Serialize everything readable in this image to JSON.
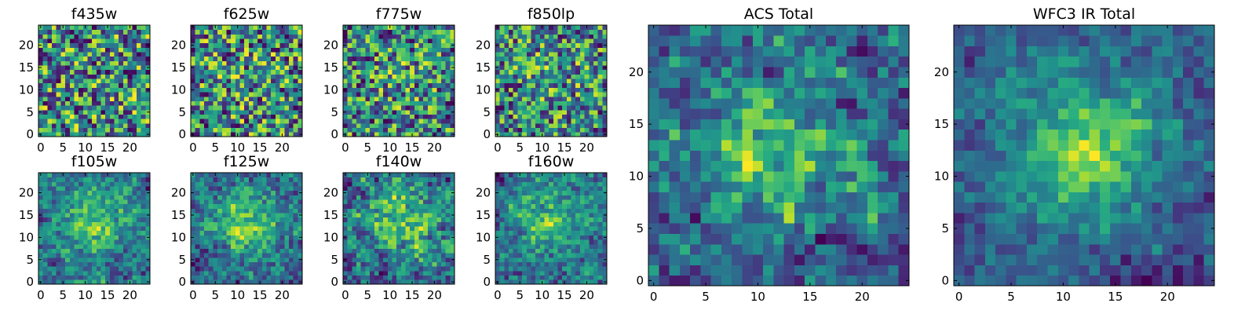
{
  "chart_data": [
    {
      "type": "heatmap",
      "title": "f435w",
      "grid_size": 25,
      "xlim": [
        -0.5,
        24.5
      ],
      "ylim": [
        -0.5,
        24.5
      ],
      "xticks": [
        "0",
        "5",
        "10",
        "15",
        "20"
      ],
      "yticks": [
        "0",
        "5",
        "10",
        "15",
        "20"
      ],
      "colormap": "viridis",
      "smoothness": 0.0,
      "center_strength": 0.0,
      "seed": 11
    },
    {
      "type": "heatmap",
      "title": "f625w",
      "grid_size": 25,
      "xlim": [
        -0.5,
        24.5
      ],
      "ylim": [
        -0.5,
        24.5
      ],
      "xticks": [
        "0",
        "5",
        "10",
        "15",
        "20"
      ],
      "yticks": [
        "0",
        "5",
        "10",
        "15",
        "20"
      ],
      "colormap": "viridis",
      "smoothness": 0.0,
      "center_strength": 0.05,
      "seed": 23
    },
    {
      "type": "heatmap",
      "title": "f775w",
      "grid_size": 25,
      "xlim": [
        -0.5,
        24.5
      ],
      "ylim": [
        -0.5,
        24.5
      ],
      "xticks": [
        "0",
        "5",
        "10",
        "15",
        "20"
      ],
      "yticks": [
        "0",
        "5",
        "10",
        "15",
        "20"
      ],
      "colormap": "viridis",
      "smoothness": 0.1,
      "center_strength": 0.1,
      "seed": 37
    },
    {
      "type": "heatmap",
      "title": "f850lp",
      "grid_size": 25,
      "xlim": [
        -0.5,
        24.5
      ],
      "ylim": [
        -0.5,
        24.5
      ],
      "xticks": [
        "0",
        "5",
        "10",
        "15",
        "20"
      ],
      "yticks": [
        "0",
        "5",
        "10",
        "15",
        "20"
      ],
      "colormap": "viridis",
      "smoothness": 0.1,
      "center_strength": 0.1,
      "seed": 41
    },
    {
      "type": "heatmap",
      "title": "f105w",
      "grid_size": 25,
      "xlim": [
        -0.5,
        24.5
      ],
      "ylim": [
        -0.5,
        24.5
      ],
      "xticks": [
        "0",
        "5",
        "10",
        "15",
        "20"
      ],
      "yticks": [
        "0",
        "5",
        "10",
        "15",
        "20"
      ],
      "colormap": "viridis",
      "smoothness": 0.45,
      "center_strength": 0.25,
      "seed": 53
    },
    {
      "type": "heatmap",
      "title": "f125w",
      "grid_size": 25,
      "xlim": [
        -0.5,
        24.5
      ],
      "ylim": [
        -0.5,
        24.5
      ],
      "xticks": [
        "0",
        "5",
        "10",
        "15",
        "20"
      ],
      "yticks": [
        "0",
        "5",
        "10",
        "15",
        "20"
      ],
      "colormap": "viridis",
      "smoothness": 0.45,
      "center_strength": 0.3,
      "seed": 67
    },
    {
      "type": "heatmap",
      "title": "f140w",
      "grid_size": 25,
      "xlim": [
        -0.5,
        24.5
      ],
      "ylim": [
        -0.5,
        24.5
      ],
      "xticks": [
        "0",
        "5",
        "10",
        "15",
        "20"
      ],
      "yticks": [
        "0",
        "5",
        "10",
        "15",
        "20"
      ],
      "colormap": "viridis",
      "smoothness": 0.4,
      "center_strength": 0.25,
      "seed": 79
    },
    {
      "type": "heatmap",
      "title": "f160w",
      "grid_size": 25,
      "xlim": [
        -0.5,
        24.5
      ],
      "ylim": [
        -0.5,
        24.5
      ],
      "xticks": [
        "0",
        "5",
        "10",
        "15",
        "20"
      ],
      "yticks": [
        "0",
        "5",
        "10",
        "15",
        "20"
      ],
      "colormap": "viridis",
      "smoothness": 0.45,
      "center_strength": 0.3,
      "seed": 83
    },
    {
      "type": "heatmap",
      "title": "ACS Total",
      "grid_size": 25,
      "xlim": [
        -0.5,
        24.5
      ],
      "ylim": [
        -0.5,
        24.5
      ],
      "xticks": [
        "0",
        "5",
        "10",
        "15",
        "20"
      ],
      "yticks": [
        "0",
        "5",
        "10",
        "15",
        "20"
      ],
      "colormap": "viridis",
      "smoothness": 0.3,
      "center_strength": 0.35,
      "seed": 97
    },
    {
      "type": "heatmap",
      "title": "WFC3 IR Total",
      "grid_size": 25,
      "xlim": [
        -0.5,
        24.5
      ],
      "ylim": [
        -0.5,
        24.5
      ],
      "xticks": [
        "0",
        "5",
        "10",
        "15",
        "20"
      ],
      "yticks": [
        "0",
        "5",
        "10",
        "15",
        "20"
      ],
      "colormap": "viridis",
      "smoothness": 0.6,
      "center_strength": 0.55,
      "seed": 101
    }
  ],
  "colors": {
    "viridis_dark": "#440154",
    "viridis_mid": "#21918c",
    "viridis_light": "#fde725",
    "frame": "#000000"
  }
}
